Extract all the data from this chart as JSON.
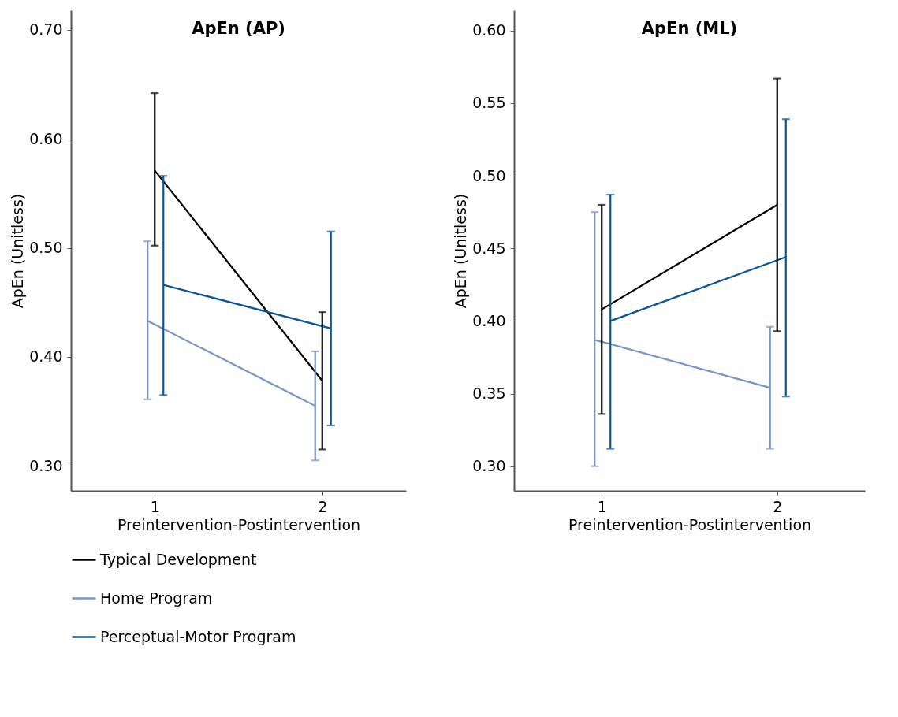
{
  "chart_data": [
    {
      "type": "line",
      "title": "ApEn (AP)",
      "xlabel": "Preintervention-Postintervention",
      "ylabel": "ApEn (Unitless)",
      "categories": [
        "1",
        "2"
      ],
      "legend": "bottom",
      "ylim": [
        0.277,
        0.718
      ],
      "yticks": [
        {
          "value": 0.3,
          "label": "0.30"
        },
        {
          "value": 0.4,
          "label": "0.40"
        },
        {
          "value": 0.5,
          "label": "0.50"
        },
        {
          "value": 0.6,
          "label": "0.60"
        },
        {
          "value": 0.7,
          "label": "0.70"
        }
      ],
      "series": [
        {
          "name": "Typical Development",
          "color": "#000000",
          "values": [
            0.571,
            0.378
          ],
          "errors": [
            [
              0.502,
              0.642
            ],
            [
              0.315,
              0.441
            ]
          ]
        },
        {
          "name": "Home Program",
          "color": "#7895c7",
          "values": [
            0.433,
            0.355
          ],
          "errors": [
            [
              0.361,
              0.506
            ],
            [
              0.305,
              0.405
            ]
          ]
        },
        {
          "name": "Perceptual-Motor Program",
          "color": "#0a5596",
          "values": [
            0.466,
            0.426
          ],
          "errors": [
            [
              0.365,
              0.566
            ],
            [
              0.337,
              0.515
            ]
          ]
        }
      ]
    },
    {
      "type": "line",
      "title": "ApEn (ML)",
      "xlabel": "Preintervention-Postintervention",
      "ylabel": "ApEn (Unitless)",
      "categories": [
        "1",
        "2"
      ],
      "ylim": [
        0.283,
        0.614
      ],
      "yticks": [
        {
          "value": 0.3,
          "label": "0.30"
        },
        {
          "value": 0.35,
          "label": "0.35"
        },
        {
          "value": 0.4,
          "label": "0.40"
        },
        {
          "value": 0.45,
          "label": "0.45"
        },
        {
          "value": 0.5,
          "label": "0.50"
        },
        {
          "value": 0.55,
          "label": "0.55"
        },
        {
          "value": 0.6,
          "label": "0.60"
        }
      ],
      "series": [
        {
          "name": "Typical Development",
          "color": "#000000",
          "values": [
            0.408,
            0.48
          ],
          "errors": [
            [
              0.336,
              0.48
            ],
            [
              0.393,
              0.567
            ]
          ]
        },
        {
          "name": "Home Program",
          "color": "#7895c7",
          "values": [
            0.387,
            0.354
          ],
          "errors": [
            [
              0.3,
              0.475
            ],
            [
              0.312,
              0.396
            ]
          ]
        },
        {
          "name": "Perceptual-Motor Program",
          "color": "#0a5596",
          "values": [
            0.4,
            0.444
          ],
          "errors": [
            [
              0.312,
              0.487
            ],
            [
              0.348,
              0.539
            ]
          ]
        }
      ]
    }
  ]
}
